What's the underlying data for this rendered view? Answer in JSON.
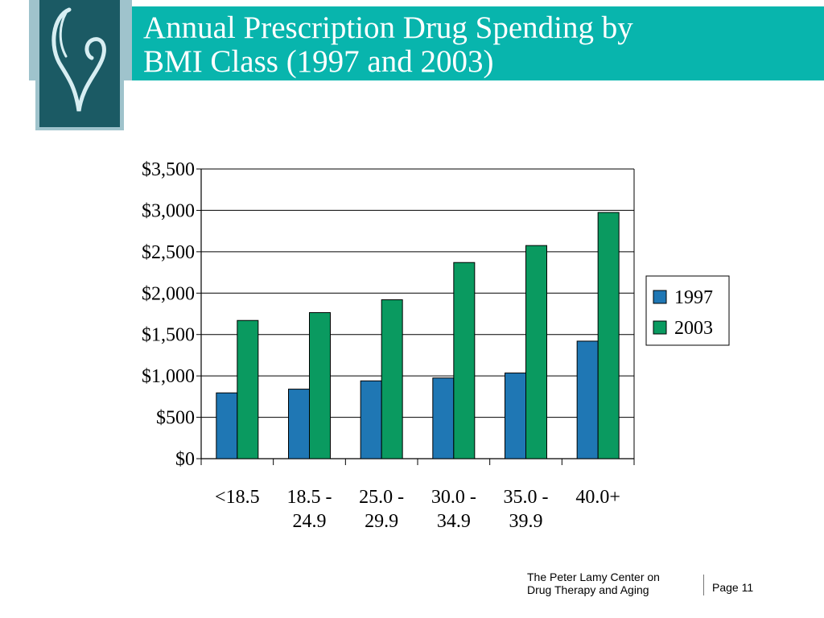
{
  "slide": {
    "title": "Annual Prescription Drug  Spending by\nBMI Class (1997 and 2003)",
    "footer_org": "The Peter Lamy Center on\nDrug Therapy and Aging",
    "page_label": "Page 11",
    "colors": {
      "title_bar": "#08b5ad",
      "logo_teal": "#1b5a64",
      "logo_frame": "#9fc3cc"
    }
  },
  "chart_data": {
    "type": "bar",
    "categories": [
      "<18.5",
      "18.5 -\n24.9",
      "25.0 -\n29.9",
      "30.0 -\n34.9",
      "35.0 -\n39.9",
      "40.0+"
    ],
    "series": [
      {
        "name": "1997",
        "color": "#1f77b4",
        "values": [
          795,
          840,
          940,
          975,
          1035,
          1420
        ]
      },
      {
        "name": "2003",
        "color": "#0a9a60",
        "values": [
          1670,
          1765,
          1920,
          2370,
          2575,
          2975
        ]
      }
    ],
    "ytick_labels": [
      "$0",
      "$500",
      "$1,000",
      "$1,500",
      "$2,000",
      "$2,500",
      "$3,000",
      "$3,500"
    ],
    "ylim": [
      0,
      3500
    ],
    "ytick_step": 500,
    "grid": true,
    "legend_position": "right"
  }
}
